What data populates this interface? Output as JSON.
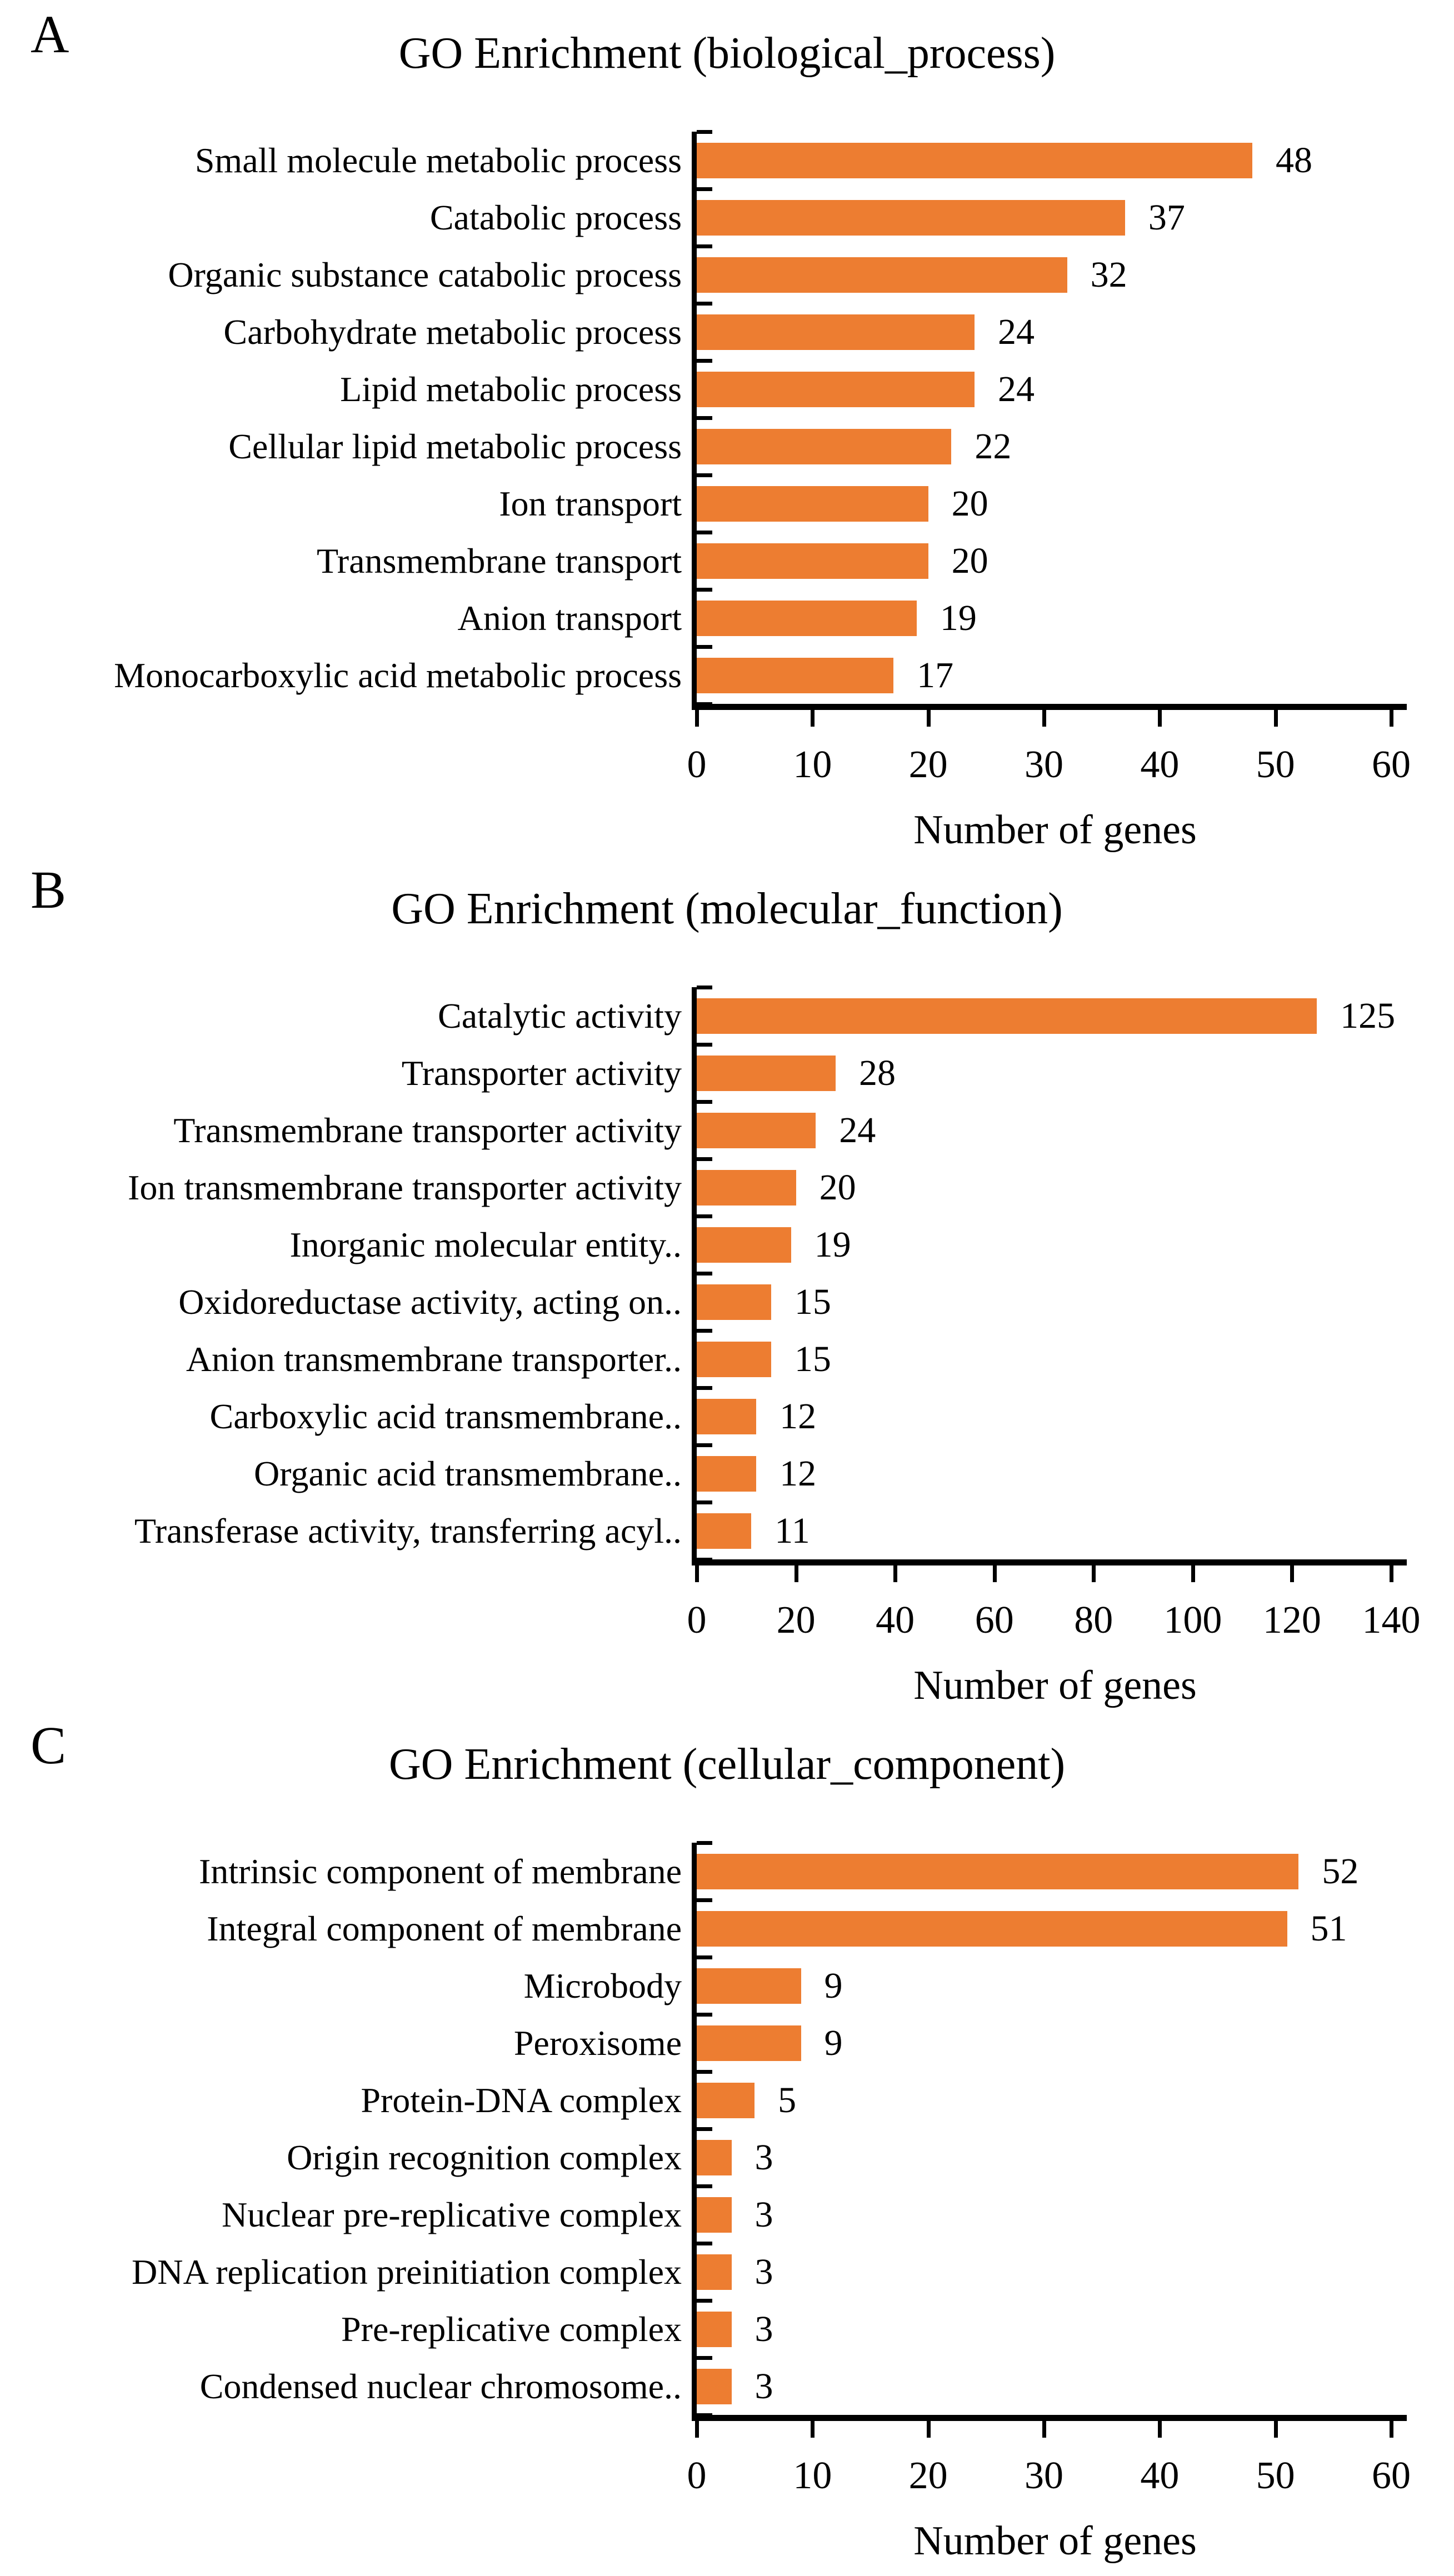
{
  "colors": {
    "bar": "#ED7D31",
    "axis": "#000000",
    "text": "#000000",
    "background": "#ffffff"
  },
  "chart_data": [
    {
      "type": "bar",
      "orientation": "horizontal",
      "panel_label": "A",
      "title": "GO Enrichment (biological_process)",
      "categories": [
        "Small molecule metabolic process",
        "Catabolic process",
        "Organic substance catabolic process",
        "Carbohydrate metabolic process",
        "Lipid metabolic process",
        "Cellular lipid metabolic process",
        "Ion transport",
        "Transmembrane transport",
        "Anion transport",
        "Monocarboxylic acid metabolic process"
      ],
      "values": [
        48,
        37,
        32,
        24,
        24,
        22,
        20,
        20,
        19,
        17
      ],
      "xlabel": "Number of genes",
      "xlim": [
        0,
        60
      ],
      "xticks": [
        0,
        10,
        20,
        30,
        40,
        50,
        60
      ],
      "grid": false,
      "legend": false,
      "data_labels": true
    },
    {
      "type": "bar",
      "orientation": "horizontal",
      "panel_label": "B",
      "title": "GO Enrichment (molecular_function)",
      "categories": [
        "Catalytic activity",
        "Transporter activity",
        "Transmembrane transporter activity",
        "Ion transmembrane transporter activity",
        "Inorganic molecular entity..",
        "Oxidoreductase activity, acting on..",
        "Anion transmembrane transporter..",
        "Carboxylic acid transmembrane..",
        "Organic acid transmembrane..",
        "Transferase activity, transferring acyl.."
      ],
      "values": [
        125,
        28,
        24,
        20,
        19,
        15,
        15,
        12,
        12,
        11
      ],
      "xlabel": "Number of genes",
      "xlim": [
        0,
        140
      ],
      "xticks": [
        0,
        20,
        40,
        60,
        80,
        100,
        120,
        140
      ],
      "grid": false,
      "legend": false,
      "data_labels": true
    },
    {
      "type": "bar",
      "orientation": "horizontal",
      "panel_label": "C",
      "title": "GO Enrichment (cellular_component)",
      "categories": [
        "Intrinsic component of membrane",
        "Integral component of membrane",
        "Microbody",
        "Peroxisome",
        "Protein-DNA complex",
        "Origin recognition complex",
        "Nuclear pre-replicative complex",
        "DNA replication preinitiation complex",
        "Pre-replicative complex",
        "Condensed nuclear chromosome.."
      ],
      "values": [
        52,
        51,
        9,
        9,
        5,
        3,
        3,
        3,
        3,
        3
      ],
      "xlabel": "Number of genes",
      "xlim": [
        0,
        60
      ],
      "xticks": [
        0,
        10,
        20,
        30,
        40,
        50,
        60
      ],
      "grid": false,
      "legend": false,
      "data_labels": true
    }
  ]
}
